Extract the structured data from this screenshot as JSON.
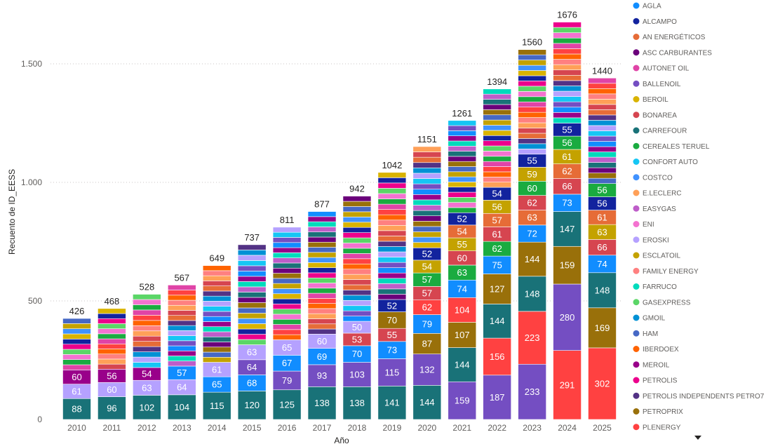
{
  "chart_data": {
    "type": "bar",
    "stacked": true,
    "title": "",
    "xlabel": "Año",
    "ylabel": "Recuento de ID_EESS",
    "ylim": [
      0,
      1750
    ],
    "yticks": [
      0,
      500,
      1000,
      1500
    ],
    "ytick_labels": [
      "0",
      "500",
      "1.000",
      "1.500"
    ],
    "grid": true,
    "legend_position": "right",
    "categories": [
      "2010",
      "2011",
      "2012",
      "2013",
      "2014",
      "2015",
      "2016",
      "2017",
      "2018",
      "2019",
      "2020",
      "2021",
      "2022",
      "2023",
      "2024",
      "2025"
    ],
    "totals": [
      426,
      468,
      528,
      567,
      649,
      737,
      811,
      877,
      942,
      1042,
      1151,
      1261,
      1394,
      1560,
      1676,
      1440
    ],
    "palette": [
      "#118DFF",
      "#12239E",
      "#E66C37",
      "#6B007B",
      "#E044A7",
      "#744EC2",
      "#D9B300",
      "#D64550",
      "#197278",
      "#1AAB40",
      "#15C6F4",
      "#4092FF",
      "#FFA058",
      "#BE5DC9",
      "#F472D0",
      "#B5A1FF",
      "#C4A200",
      "#FF8080",
      "#00DBBC",
      "#5BD667",
      "#0091D5",
      "#4668C5",
      "#FF6300",
      "#99008A",
      "#EC008C",
      "#533285",
      "#99700A",
      "#FF4141"
    ],
    "legend": [
      "AGLA",
      "ALCAMPO",
      "AN ENERGÉTICOS",
      "ASC CARBURANTES",
      "AUTONET OIL",
      "BALLENOIL",
      "BEROIL",
      "BONAREA",
      "CARREFOUR",
      "CEREALES TERUEL",
      "CONFORT AUTO",
      "COSTCO",
      "E.LECLERC",
      "EASYGAS",
      "ENI",
      "EROSKI",
      "ESCLATOIL",
      "FAMILY ENERGY",
      "FARRUCO",
      "GASEXPRESS",
      "GMOIL",
      "HAM",
      "IBERDOEX",
      "MEROIL",
      "PETROLIS",
      "PETROLIS INDEPENDENTS PETRO7",
      "PETROPRIX",
      "PLENERGY"
    ],
    "stacks": [
      [
        {
          "v": 88,
          "c": 8
        },
        {
          "v": 61,
          "c": 15
        },
        {
          "v": 60,
          "c": 23
        }
      ],
      [
        {
          "v": 96,
          "c": 8
        },
        {
          "v": 60,
          "c": 15
        },
        {
          "v": 56,
          "c": 23
        }
      ],
      [
        {
          "v": 102,
          "c": 8
        },
        {
          "v": 63,
          "c": 15
        },
        {
          "v": 54,
          "c": 23
        }
      ],
      [
        {
          "v": 104,
          "c": 8
        },
        {
          "v": 64,
          "c": 15
        },
        {
          "v": 57,
          "c": 0
        }
      ],
      [
        {
          "v": 115,
          "c": 8
        },
        {
          "v": 65,
          "c": 0
        },
        {
          "v": 61,
          "c": 15
        }
      ],
      [
        {
          "v": 120,
          "c": 8
        },
        {
          "v": 68,
          "c": 0
        },
        {
          "v": 64,
          "c": 5
        },
        {
          "v": 63,
          "c": 15
        }
      ],
      [
        {
          "v": 125,
          "c": 8
        },
        {
          "v": 79,
          "c": 5
        },
        {
          "v": 67,
          "c": 0
        },
        {
          "v": 65,
          "c": 15
        }
      ],
      [
        {
          "v": 138,
          "c": 8
        },
        {
          "v": 93,
          "c": 5
        },
        {
          "v": 69,
          "c": 0
        },
        {
          "v": 60,
          "c": 15
        }
      ],
      [
        {
          "v": 138,
          "c": 8
        },
        {
          "v": 103,
          "c": 5
        },
        {
          "v": 70,
          "c": 0
        },
        {
          "v": 53,
          "c": 7
        },
        {
          "v": 50,
          "c": 15
        }
      ],
      [
        {
          "v": 141,
          "c": 8
        },
        {
          "v": 115,
          "c": 5
        },
        {
          "v": 73,
          "c": 0
        },
        {
          "v": 55,
          "c": 7
        },
        {
          "v": 70,
          "c": 26
        },
        {
          "v": 52,
          "c": 1
        }
      ],
      [
        {
          "v": 144,
          "c": 8
        },
        {
          "v": 132,
          "c": 5
        },
        {
          "v": 87,
          "c": 26
        },
        {
          "v": 79,
          "c": 0
        },
        {
          "v": 62,
          "c": 27
        },
        {
          "v": 57,
          "c": 7
        },
        {
          "v": 57,
          "c": 9
        },
        {
          "v": 54,
          "c": 16
        },
        {
          "v": 52,
          "c": 1
        }
      ],
      [
        {
          "v": 159,
          "c": 5
        },
        {
          "v": 144,
          "c": 8
        },
        {
          "v": 107,
          "c": 26
        },
        {
          "v": 104,
          "c": 27
        },
        {
          "v": 74,
          "c": 0
        },
        {
          "v": 63,
          "c": 9
        },
        {
          "v": 60,
          "c": 7
        },
        {
          "v": 55,
          "c": 16
        },
        {
          "v": 54,
          "c": 2
        },
        {
          "v": 52,
          "c": 1
        }
      ],
      [
        {
          "v": 187,
          "c": 5
        },
        {
          "v": 156,
          "c": 27
        },
        {
          "v": 144,
          "c": 8
        },
        {
          "v": 127,
          "c": 26
        },
        {
          "v": 75,
          "c": 0
        },
        {
          "v": 62,
          "c": 9
        },
        {
          "v": 61,
          "c": 7
        },
        {
          "v": 57,
          "c": 2
        },
        {
          "v": 56,
          "c": 16
        },
        {
          "v": 54,
          "c": 1
        }
      ],
      [
        {
          "v": 233,
          "c": 5
        },
        {
          "v": 223,
          "c": 27
        },
        {
          "v": 148,
          "c": 8
        },
        {
          "v": 144,
          "c": 26
        },
        {
          "v": 72,
          "c": 0
        },
        {
          "v": 63,
          "c": 2
        },
        {
          "v": 62,
          "c": 7
        },
        {
          "v": 60,
          "c": 9
        },
        {
          "v": 59,
          "c": 16
        },
        {
          "v": 55,
          "c": 1
        }
      ],
      [
        {
          "v": 291,
          "c": 27
        },
        {
          "v": 280,
          "c": 5
        },
        {
          "v": 159,
          "c": 26
        },
        {
          "v": 147,
          "c": 8
        },
        {
          "v": 73,
          "c": 0
        },
        {
          "v": 66,
          "c": 7
        },
        {
          "v": 62,
          "c": 2
        },
        {
          "v": 61,
          "c": 16
        },
        {
          "v": 56,
          "c": 9
        },
        {
          "v": 55,
          "c": 1
        }
      ],
      [
        {
          "v": 302,
          "c": 27
        },
        {
          "v": 169,
          "c": 26
        },
        {
          "v": 148,
          "c": 8
        },
        {
          "v": 74,
          "c": 0
        },
        {
          "v": 66,
          "c": 7
        },
        {
          "v": 63,
          "c": 16
        },
        {
          "v": 61,
          "c": 2
        },
        {
          "v": 56,
          "c": 1
        },
        {
          "v": 56,
          "c": 9
        }
      ]
    ]
  }
}
